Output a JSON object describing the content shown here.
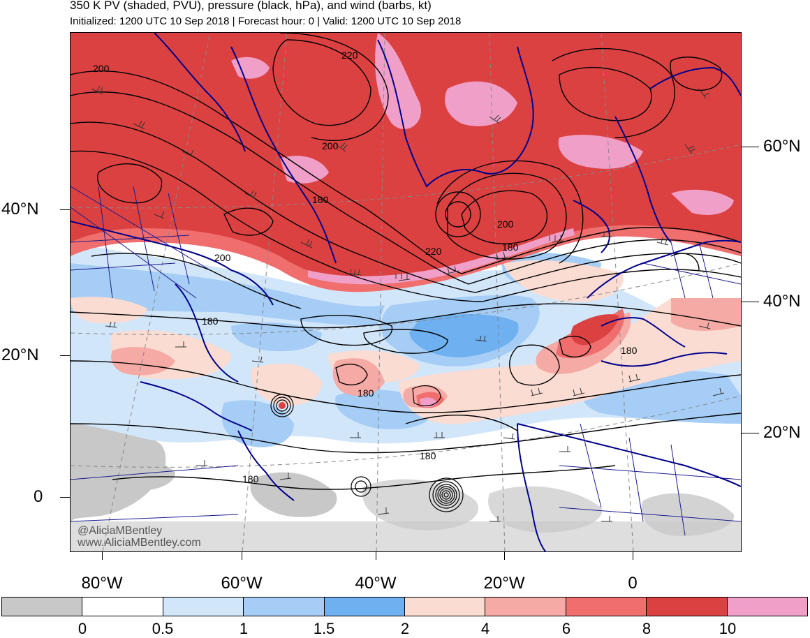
{
  "header": {
    "title": "350 K PV (shaded, PVU), pressure (black, hPa), and wind (barbs, kt)",
    "subtitle": "Initialized: 1200 UTC 10 Sep 2018 | Forecast hour: 0 | Valid: 1200 UTC 10 Sep 2018"
  },
  "map": {
    "lat_labels_left": [
      "40°N",
      "20°N",
      "0"
    ],
    "lat_labels_right": [
      "60°N",
      "40°N",
      "20°N"
    ],
    "lon_labels": [
      "80°W",
      "60°W",
      "40°W",
      "20°W",
      "0"
    ],
    "pressure_contour_labels": [
      "200",
      "220",
      "200",
      "180",
      "200",
      "220",
      "180",
      "200",
      "180",
      "180",
      "180",
      "180",
      "180"
    ],
    "watermark_handle": "@AliciaMBentley",
    "watermark_url": "www.AliciaMBentley.com"
  },
  "colorbar": {
    "labels": [
      "0",
      "0.5",
      "1",
      "1.5",
      "2",
      "4",
      "6",
      "8",
      "10"
    ],
    "colors": [
      "#c8c8c8",
      "#ffffff",
      "#d2e6fa",
      "#a5cdf5",
      "#6eb0f0",
      "#fadcd2",
      "#f5aaa5",
      "#f06e6e",
      "#dc4141",
      "#f0a0c8"
    ]
  }
}
